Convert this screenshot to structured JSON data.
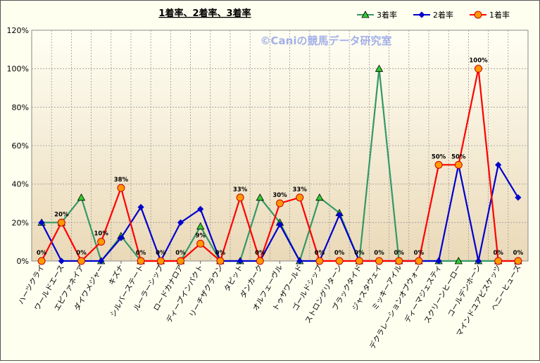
{
  "chart_data": {
    "type": "line",
    "title": "1着率、2着率、3着率",
    "watermark": "©Caniの競馬データ研究室",
    "xlabel": "",
    "ylabel": "",
    "ylim": [
      0,
      120
    ],
    "yticks": [
      "0%",
      "20%",
      "40%",
      "60%",
      "80%",
      "100%",
      "120%"
    ],
    "grid": true,
    "legend_position": "top-right",
    "categories": [
      "ハーツクライ",
      "ワールドエース",
      "エピファネイア",
      "ダイワメジャー",
      "キズナ",
      "シルバーステート",
      "ルーラーシップ",
      "ロードカナロア",
      "ディープインパクト",
      "リーチザクラウン",
      "タピット",
      "ダンカーク",
      "オルフェーヴル",
      "トゥザワールド",
      "ゴールドシップ",
      "ストロングリターン",
      "ブラックタイド",
      "ジャスタウェイ",
      "ミッキーアイル",
      "デクラレーションオブウォー",
      "ディーマジェスティ",
      "スクリーンヒーロー",
      "コールデンホーン",
      "マインドユアビスケッツ",
      "ヘニーヒューズ"
    ],
    "series": [
      {
        "name": "3着率",
        "color": "#339966",
        "marker": "triangle",
        "values": [
          20,
          20,
          33,
          0,
          13,
          0,
          0,
          0,
          18,
          0,
          0,
          33,
          20,
          0,
          33,
          25,
          0,
          100,
          0,
          0,
          0,
          0,
          0,
          0,
          0
        ]
      },
      {
        "name": "2着率",
        "color": "#0000cc",
        "marker": "diamond",
        "values": [
          20,
          0,
          0,
          0,
          12,
          28,
          0,
          20,
          27,
          0,
          0,
          0,
          19,
          0,
          0,
          24,
          0,
          0,
          0,
          0,
          0,
          50,
          0,
          50,
          33
        ]
      },
      {
        "name": "1着率",
        "color": "#ff0000",
        "marker": "circle",
        "values": [
          0,
          20,
          0,
          10,
          38,
          0,
          0,
          0,
          9,
          0,
          33,
          0,
          30,
          33,
          0,
          0,
          0,
          0,
          0,
          0,
          50,
          50,
          100,
          0,
          0
        ]
      }
    ],
    "data_labels": {
      "series": "1着率",
      "values": [
        "0%",
        "20%",
        "0%",
        "10%",
        "38%",
        "0%",
        "0%",
        "0%",
        "9%",
        "0%",
        "33%",
        "0%",
        "30%",
        "33%",
        "0%",
        "0%",
        "0%",
        "0%",
        "0%",
        "0%",
        "50%",
        "50%",
        "100%",
        "0%",
        "0%"
      ]
    }
  }
}
